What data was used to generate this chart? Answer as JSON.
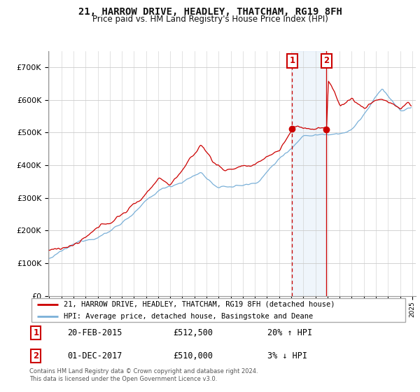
{
  "title": "21, HARROW DRIVE, HEADLEY, THATCHAM, RG19 8FH",
  "subtitle": "Price paid vs. HM Land Registry's House Price Index (HPI)",
  "legend_line1": "21, HARROW DRIVE, HEADLEY, THATCHAM, RG19 8FH (detached house)",
  "legend_line2": "HPI: Average price, detached house, Basingstoke and Deane",
  "transaction1_date": "20-FEB-2015",
  "transaction1_price": "£512,500",
  "transaction1_hpi": "20% ↑ HPI",
  "transaction2_date": "01-DEC-2017",
  "transaction2_price": "£510,000",
  "transaction2_hpi": "3% ↓ HPI",
  "footnote": "Contains HM Land Registry data © Crown copyright and database right 2024.\nThis data is licensed under the Open Government Licence v3.0.",
  "hpi_color": "#7ab0d8",
  "price_color": "#cc0000",
  "sale1_price": 512500,
  "sale2_price": 510000,
  "ylim": [
    0,
    750000
  ],
  "yticks": [
    0,
    100000,
    200000,
    300000,
    400000,
    500000,
    600000,
    700000
  ],
  "background_color": "#ffffff"
}
